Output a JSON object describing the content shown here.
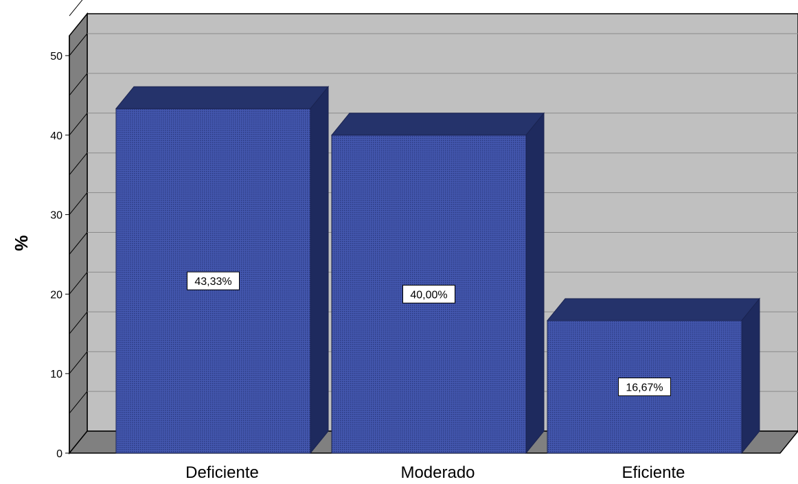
{
  "chart_data": {
    "type": "bar",
    "categories": [
      "Deficiente",
      "Moderado",
      "Eficiente"
    ],
    "values": [
      43.33,
      40.0,
      16.67
    ],
    "value_labels": [
      "43,33%",
      "40,00%",
      "16,67%"
    ],
    "ylabel": "%",
    "ylim": [
      0,
      55
    ],
    "yticks": [
      0,
      10,
      20,
      30,
      40,
      50
    ],
    "grid": true,
    "three_d": true,
    "colors": {
      "bar_front": "#3a4d9e",
      "bar_top": "#25336b",
      "bar_side": "#1e2a5e",
      "wall": "#c0c0c0",
      "floor": "#808080",
      "gridline": "#8a8a8a"
    }
  }
}
